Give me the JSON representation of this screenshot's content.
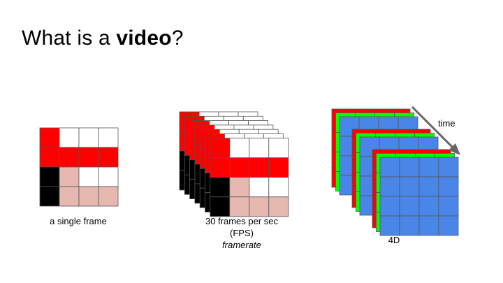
{
  "title": {
    "prefix": "What is a ",
    "bold": "video",
    "suffix": "?"
  },
  "panels": [
    {
      "caption": "a single frame"
    },
    {
      "caption_line1": "30 frames per sec",
      "caption_line2": "(FPS)",
      "caption_italic": "framerate"
    },
    {
      "caption": "4D",
      "axis_label": "time"
    }
  ],
  "colors": {
    "red": "#ff0000",
    "black": "#000000",
    "pink": "#e6b8af",
    "white": "#ffffff",
    "green": "#00ff00",
    "blue": "#4a86e8",
    "grid": "#555555",
    "arrow": "#666666"
  },
  "frame_pattern": [
    [
      "red",
      "white",
      "white",
      "white"
    ],
    [
      "red",
      "red",
      "red",
      "red"
    ],
    [
      "black",
      "pink",
      "white",
      "white"
    ],
    [
      "black",
      "pink",
      "pink",
      "pink"
    ]
  ],
  "channels_4d": [
    "red",
    "green",
    "blue"
  ]
}
